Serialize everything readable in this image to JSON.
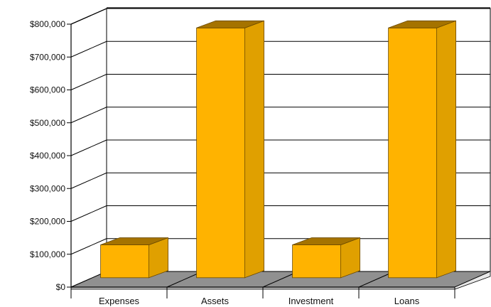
{
  "chart_data": {
    "type": "bar",
    "categories": [
      "Expenses",
      "Assets",
      "Investment",
      "Loans"
    ],
    "values": [
      100000,
      760000,
      100000,
      760000
    ],
    "ylim": [
      0,
      800000
    ],
    "yticks": [
      "$0",
      "$100,000",
      "$200,000",
      "$300,000",
      "$400,000",
      "$500,000",
      "$600,000",
      "$700,000",
      "$800,000"
    ],
    "grid": true,
    "style": "3d",
    "colors": {
      "bar_front": "#FFB300",
      "bar_top": "#A57300",
      "bar_side": "#E0A000",
      "floor": "#909090",
      "back_wall": "#ffffff",
      "grid": "#000000"
    }
  }
}
